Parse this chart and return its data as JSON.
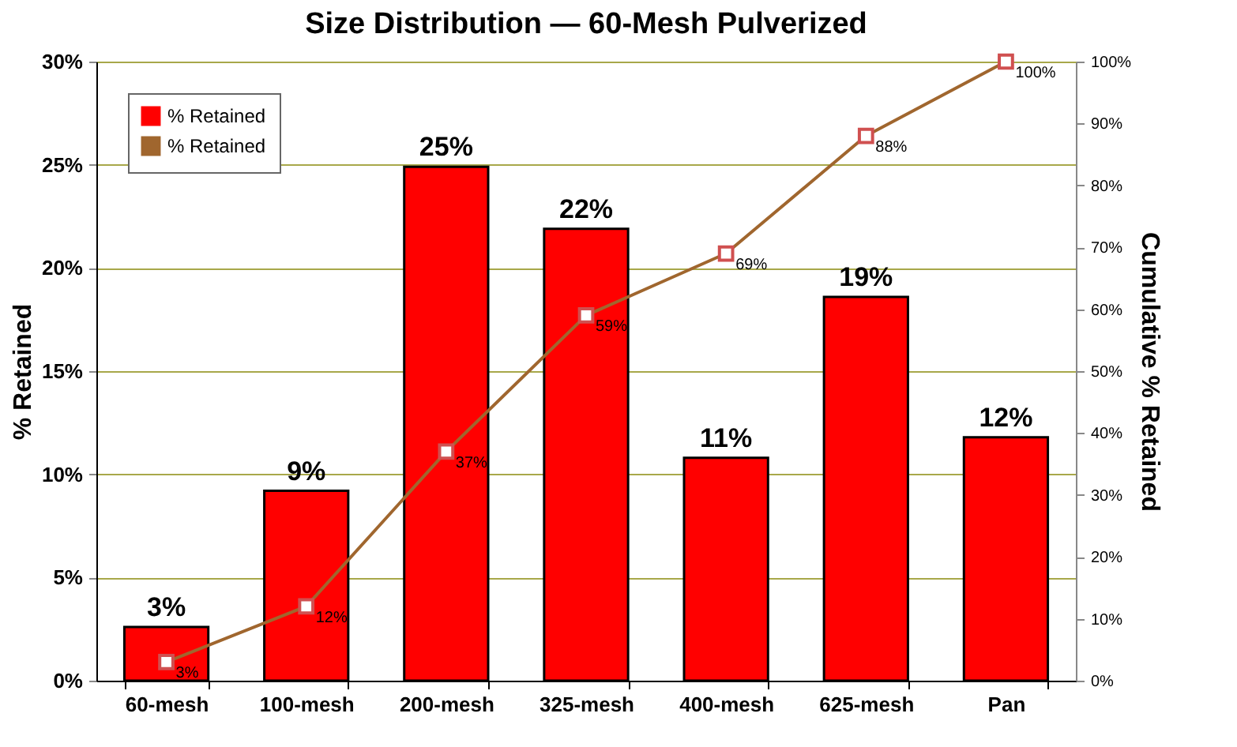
{
  "chart_data": {
    "type": "bar",
    "title": "Size Distribution — 60-Mesh Pulverized",
    "ylabel": "% Retained",
    "y2label": "Cumulative % Retained",
    "categories": [
      "60-mesh",
      "100-mesh",
      "200-mesh",
      "325-mesh",
      "400-mesh",
      "625-mesh",
      "Pan"
    ],
    "series": [
      {
        "name": "% Retained",
        "color": "#ff0000",
        "values": [
          2.6,
          9.2,
          24.9,
          21.9,
          10.8,
          18.6,
          11.8
        ],
        "value_labels": [
          "3%",
          "9%",
          "25%",
          "22%",
          "11%",
          "19%",
          "12%"
        ]
      },
      {
        "name": "% Retained",
        "type": "line",
        "axis": "y2",
        "color": "#a0662e",
        "marker": "square",
        "values": [
          3,
          12,
          37,
          59,
          69,
          88,
          100
        ],
        "value_labels": [
          "3%",
          "12%",
          "37%",
          "59%",
          "69%",
          "88%",
          "100%"
        ]
      }
    ],
    "ylim": [
      0,
      30
    ],
    "yticks": [
      {
        "value": 0,
        "label": "0%"
      },
      {
        "value": 5,
        "label": "5%"
      },
      {
        "value": 10,
        "label": "10%"
      },
      {
        "value": 15,
        "label": "15%"
      },
      {
        "value": 20,
        "label": "20%"
      },
      {
        "value": 25,
        "label": "25%"
      },
      {
        "value": 30,
        "label": "30%"
      }
    ],
    "y2lim": [
      0,
      100
    ],
    "y2ticks": [
      {
        "value": 0,
        "label": "0%"
      },
      {
        "value": 10,
        "label": "10%"
      },
      {
        "value": 20,
        "label": "20%"
      },
      {
        "value": 30,
        "label": "30%"
      },
      {
        "value": 40,
        "label": "40%"
      },
      {
        "value": 50,
        "label": "50%"
      },
      {
        "value": 60,
        "label": "60%"
      },
      {
        "value": 70,
        "label": "70%"
      },
      {
        "value": 80,
        "label": "80%"
      },
      {
        "value": 90,
        "label": "90%"
      },
      {
        "value": 100,
        "label": "100%"
      }
    ],
    "grid": "y",
    "legend": "top left"
  }
}
